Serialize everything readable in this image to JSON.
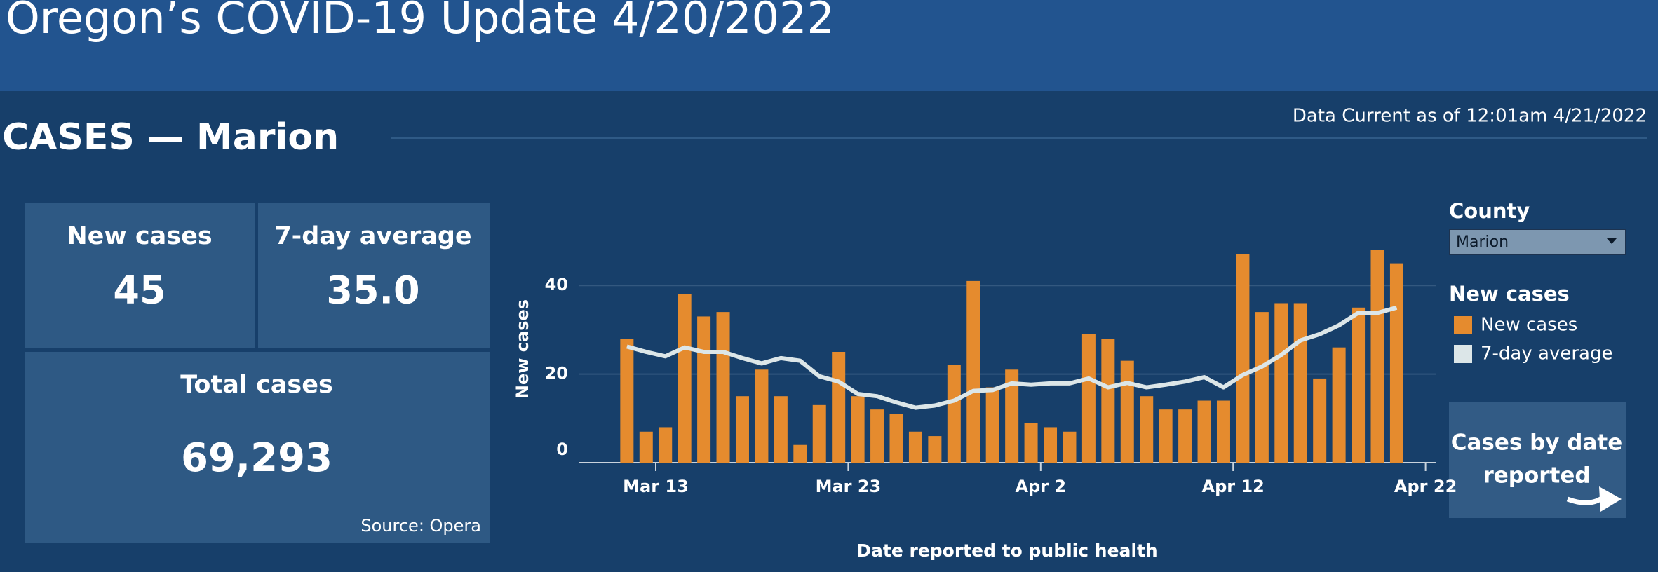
{
  "header": {
    "title": "Oregon’s COVID-19 Update 4/20/2022"
  },
  "section": {
    "title": "CASES — Marion",
    "data_current": "Data Current as of 12:01am 4/21/2022"
  },
  "kpis": {
    "new_cases": {
      "label": "New cases",
      "value": "45"
    },
    "seven_day_average": {
      "label": "7-day average",
      "value": "35.0"
    },
    "total_cases": {
      "label": "Total cases",
      "value": "69,293"
    },
    "source": "Source: Opera"
  },
  "filter": {
    "label": "County",
    "selected": "Marion"
  },
  "button": {
    "lines": [
      "Cases by date",
      "reported"
    ]
  },
  "chart_data": {
    "type": "bar",
    "xlabel": "Date reported to public health",
    "ylabel": "New cases",
    "legend_title": "New cases",
    "x": [
      "Mar 11",
      "Mar 12",
      "Mar 13",
      "Mar 14",
      "Mar 15",
      "Mar 16",
      "Mar 17",
      "Mar 18",
      "Mar 19",
      "Mar 20",
      "Mar 21",
      "Mar 22",
      "Mar 23",
      "Mar 24",
      "Mar 25",
      "Mar 26",
      "Mar 27",
      "Mar 28",
      "Mar 29",
      "Mar 30",
      "Mar 31",
      "Apr 1",
      "Apr 2",
      "Apr 3",
      "Apr 4",
      "Apr 5",
      "Apr 6",
      "Apr 7",
      "Apr 8",
      "Apr 9",
      "Apr 10",
      "Apr 11",
      "Apr 12",
      "Apr 13",
      "Apr 14",
      "Apr 15",
      "Apr 16",
      "Apr 17",
      "Apr 18",
      "Apr 19",
      "Apr 20"
    ],
    "series": [
      {
        "name": "New cases",
        "type": "bar",
        "color": "#e58b2e",
        "values": [
          28,
          7,
          8,
          38,
          33,
          34,
          15,
          21,
          15,
          4,
          13,
          25,
          15,
          12,
          11,
          7,
          6,
          22,
          41,
          17,
          21,
          9,
          8,
          7,
          29,
          28,
          23,
          15,
          12,
          12,
          14,
          14,
          47,
          34,
          36,
          36,
          19,
          26,
          35,
          48,
          45
        ]
      },
      {
        "name": "7-day average",
        "type": "line",
        "color": "#dce6e8",
        "values": [
          26.2,
          25,
          24,
          26,
          25,
          25,
          23.6,
          22.4,
          23.6,
          23,
          19.5,
          18.3,
          15.5,
          15,
          13.6,
          12.4,
          12.9,
          14,
          16.2,
          16.4,
          17.9,
          17.6,
          17.9,
          17.9,
          19,
          17,
          18,
          17,
          17.6,
          18.3,
          19.3,
          17,
          19.8,
          21.7,
          24.3,
          27.6,
          29,
          31,
          33.8,
          33.8,
          35
        ]
      }
    ],
    "ylim": [
      0,
      50
    ],
    "yticks": [
      0,
      20,
      40
    ],
    "xticks": [
      "Mar 13",
      "Mar 23",
      "Apr 2",
      "Apr 12",
      "Apr 22"
    ],
    "grid": true
  }
}
